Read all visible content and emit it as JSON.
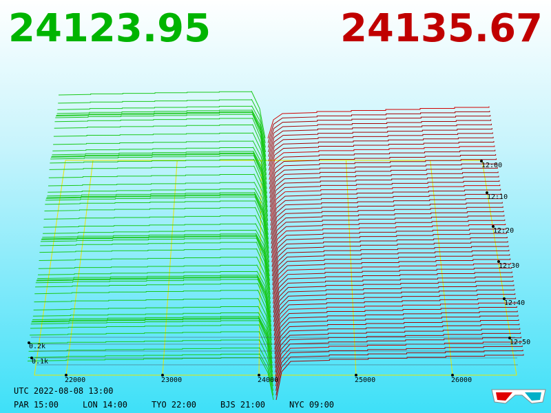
{
  "bid_price": 24123.95,
  "ask_price": 24135.67,
  "price_axis": [
    22000,
    23000,
    24000,
    25000,
    26000
  ],
  "volume_axis": [
    "0.2k",
    "0.1k"
  ],
  "time_axis": [
    "12:00",
    "12:10",
    "12:20",
    "12:30",
    "12:40",
    "12:50"
  ],
  "utc_time": "UTC 2022-08-08 13:00",
  "world_clocks": [
    "PAR 15:00",
    "LON 14:00",
    "TYO 22:00",
    "BJS 21:00",
    "NYC 09:00"
  ]
}
